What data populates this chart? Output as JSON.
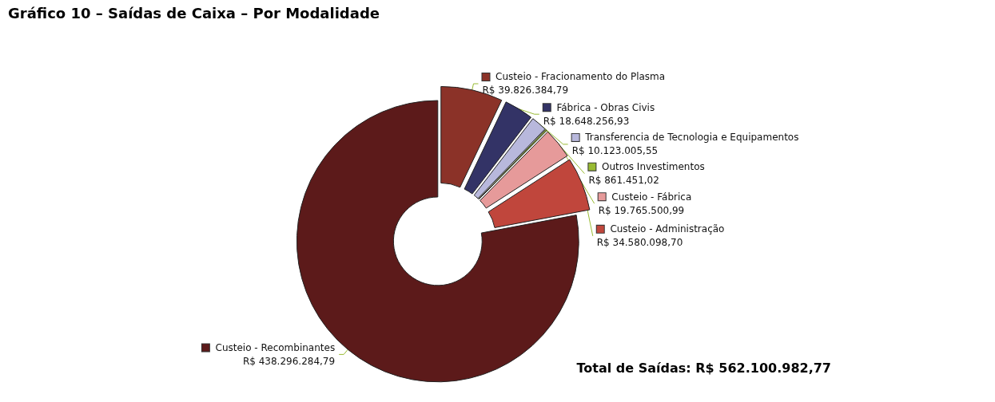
{
  "chart_data": {
    "type": "donut",
    "title": "Gráfico 10 – Saídas de Caixa – Por Modalidade",
    "categories": [
      "Custeio - Fracionamento do Plasma",
      "Fábrica - Obras Civis",
      "Transferencia de Tecnologia e Equipamentos",
      "Outros Investimentos",
      "Custeio - Fábrica",
      "Custeio - Administração",
      "Custeio - Recombinantes"
    ],
    "values": [
      39826384.79,
      18648256.93,
      10123005.55,
      861451.02,
      19765500.99,
      34580098.7,
      438296284.79
    ],
    "value_labels": [
      "R$ 39.826.384,79",
      "R$ 18.648.256,93",
      "R$ 10.123.005,55",
      "R$ 861.451,02",
      "R$ 19.765.500,99",
      "R$ 34.580.098,70",
      "R$ 438.296.284,79"
    ],
    "colors": [
      "#8b3228",
      "#333366",
      "#b8b8dc",
      "#99bb33",
      "#e69a9a",
      "#c0463c",
      "#5c1a1a"
    ],
    "annotations": [
      "Total de Saídas: R$ 562.100.982,77"
    ],
    "legend": "right"
  }
}
